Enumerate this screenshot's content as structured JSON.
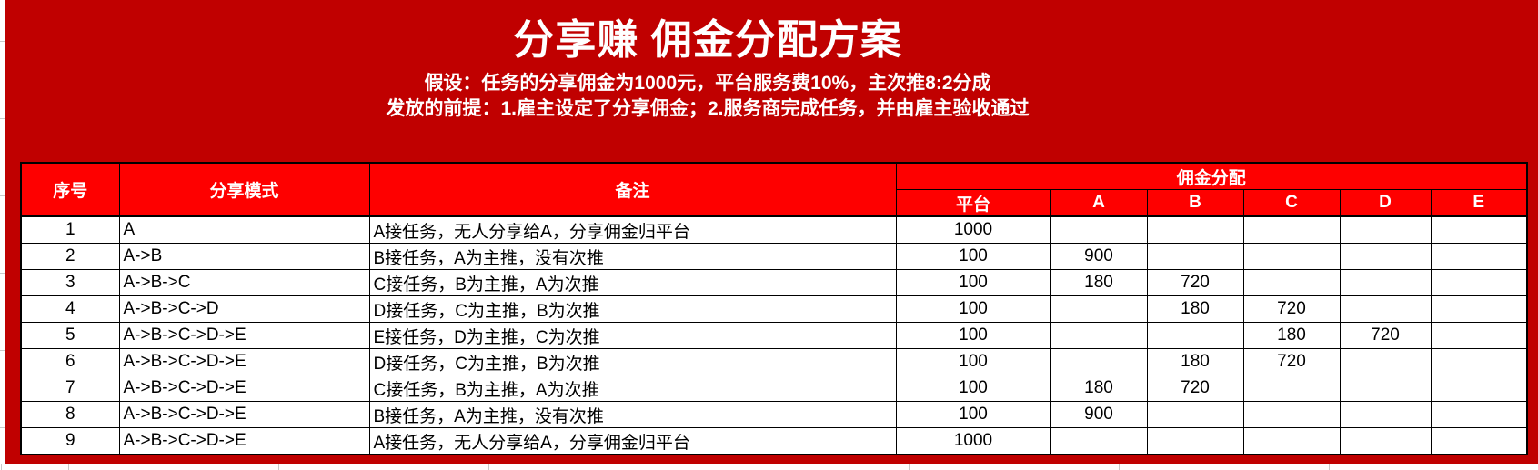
{
  "header": {
    "title": "分享赚 佣金分配方案",
    "assumption": "假设：任务的分享佣金为1000元，平台服务费10%，主次推8:2分成",
    "premise": "发放的前提：1.雇主设定了分享佣金；2.服务商完成任务，并由雇主验收通过"
  },
  "colors": {
    "page_background": "#c00000",
    "header_cell_background": "#fe0000",
    "body_cell_background": "#ffffff",
    "grid_border": "#000000",
    "header_text": "#ffffff",
    "body_text": "#000000"
  },
  "table": {
    "column_headers": {
      "no": "序号",
      "mode": "分享模式",
      "note": "备注",
      "group": "佣金分配",
      "sub": [
        "平台",
        "A",
        "B",
        "C",
        "D",
        "E"
      ]
    },
    "rows": [
      [
        "1",
        "A",
        "A接任务，无人分享给A，分享佣金归平台",
        "1000",
        "",
        "",
        "",
        "",
        ""
      ],
      [
        "2",
        "A->B",
        "B接任务，A为主推，没有次推",
        "100",
        "900",
        "",
        "",
        "",
        ""
      ],
      [
        "3",
        "A->B->C",
        "C接任务，B为主推，A为次推",
        "100",
        "180",
        "720",
        "",
        "",
        ""
      ],
      [
        "4",
        "A->B->C->D",
        "D接任务，C为主推，B为次推",
        "100",
        "",
        "180",
        "720",
        "",
        ""
      ],
      [
        "5",
        "A->B->C->D->E",
        "E接任务，D为主推，C为次推",
        "100",
        "",
        "",
        "180",
        "720",
        ""
      ],
      [
        "6",
        "A->B->C->D->E",
        "D接任务，C为主推，B为次推",
        "100",
        "",
        "180",
        "720",
        "",
        ""
      ],
      [
        "7",
        "A->B->C->D->E",
        "C接任务，B为主推，A为次推",
        "100",
        "180",
        "720",
        "",
        "",
        ""
      ],
      [
        "8",
        "A->B->C->D->E",
        "B接任务，A为主推，没有次推",
        "100",
        "900",
        "",
        "",
        "",
        ""
      ],
      [
        "9",
        "A->B->C->D->E",
        "A接任务，无人分享给A，分享佣金归平台",
        "1000",
        "",
        "",
        "",
        "",
        ""
      ]
    ]
  }
}
